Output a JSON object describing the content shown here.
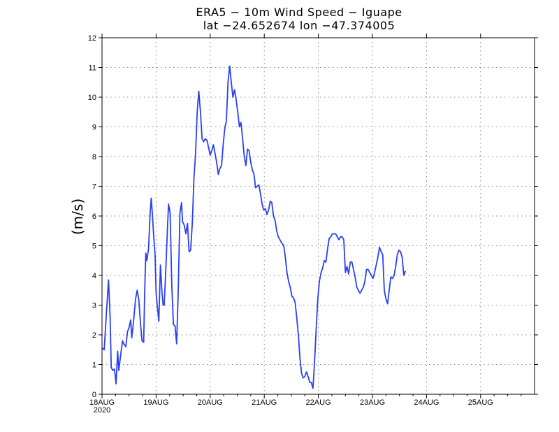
{
  "chart_data": {
    "type": "line",
    "title": "ERA5 − 10m Wind Speed − Iguape",
    "subtitle": "lat −24.652674  lon −47.374005",
    "xlabel": "",
    "ylabel": "(m/s)",
    "ylim": [
      0,
      12
    ],
    "yticks": [
      0,
      1,
      2,
      3,
      4,
      5,
      6,
      7,
      8,
      9,
      10,
      11,
      12
    ],
    "xlim_days": [
      0,
      8
    ],
    "xticks": [
      {
        "day": 0,
        "label": "18AUG",
        "sublabel": "2020"
      },
      {
        "day": 1,
        "label": "19AUG"
      },
      {
        "day": 2,
        "label": "20AUG"
      },
      {
        "day": 3,
        "label": "21AUG"
      },
      {
        "day": 4,
        "label": "22AUG"
      },
      {
        "day": 5,
        "label": "23AUG"
      },
      {
        "day": 6,
        "label": "24AUG"
      },
      {
        "day": 7,
        "label": "25AUG"
      }
    ],
    "grid": true,
    "series": [
      {
        "name": "10m Wind Speed",
        "color": "#2b3ff5",
        "points_day_value": [
          [
            0.0,
            1.55
          ],
          [
            0.04,
            1.5
          ],
          [
            0.08,
            2.7
          ],
          [
            0.12,
            3.85
          ],
          [
            0.15,
            2.6
          ],
          [
            0.17,
            0.9
          ],
          [
            0.2,
            0.8
          ],
          [
            0.23,
            0.85
          ],
          [
            0.26,
            0.35
          ],
          [
            0.29,
            1.45
          ],
          [
            0.31,
            0.8
          ],
          [
            0.35,
            1.4
          ],
          [
            0.38,
            1.8
          ],
          [
            0.4,
            1.7
          ],
          [
            0.44,
            1.6
          ],
          [
            0.47,
            2.1
          ],
          [
            0.5,
            2.25
          ],
          [
            0.53,
            2.5
          ],
          [
            0.55,
            1.9
          ],
          [
            0.58,
            2.4
          ],
          [
            0.62,
            3.2
          ],
          [
            0.65,
            3.5
          ],
          [
            0.68,
            3.2
          ],
          [
            0.71,
            2.4
          ],
          [
            0.74,
            1.8
          ],
          [
            0.77,
            1.75
          ],
          [
            0.79,
            3.5
          ],
          [
            0.81,
            4.75
          ],
          [
            0.83,
            4.5
          ],
          [
            0.86,
            4.9
          ],
          [
            0.89,
            6.1
          ],
          [
            0.91,
            6.6
          ],
          [
            0.93,
            6.1
          ],
          [
            0.95,
            5.5
          ],
          [
            0.98,
            4.7
          ],
          [
            1.0,
            3.4
          ],
          [
            1.05,
            2.45
          ],
          [
            1.08,
            4.35
          ],
          [
            1.11,
            3.4
          ],
          [
            1.13,
            3.0
          ],
          [
            1.15,
            3.0
          ],
          [
            1.18,
            4.2
          ],
          [
            1.21,
            5.6
          ],
          [
            1.23,
            6.4
          ],
          [
            1.26,
            6.1
          ],
          [
            1.29,
            3.7
          ],
          [
            1.32,
            2.35
          ],
          [
            1.35,
            2.3
          ],
          [
            1.38,
            1.7
          ],
          [
            1.41,
            3.5
          ],
          [
            1.44,
            6.1
          ],
          [
            1.47,
            6.45
          ],
          [
            1.49,
            5.8
          ],
          [
            1.52,
            5.7
          ],
          [
            1.55,
            5.4
          ],
          [
            1.58,
            5.75
          ],
          [
            1.61,
            4.8
          ],
          [
            1.64,
            4.85
          ],
          [
            1.67,
            5.8
          ],
          [
            1.7,
            7.3
          ],
          [
            1.73,
            8.1
          ],
          [
            1.76,
            9.5
          ],
          [
            1.79,
            10.2
          ],
          [
            1.82,
            9.5
          ],
          [
            1.85,
            8.6
          ],
          [
            1.88,
            8.5
          ],
          [
            1.91,
            8.6
          ],
          [
            1.94,
            8.55
          ],
          [
            1.97,
            8.3
          ],
          [
            2.0,
            8.05
          ],
          [
            2.03,
            8.2
          ],
          [
            2.06,
            8.4
          ],
          [
            2.09,
            8.1
          ],
          [
            2.12,
            7.8
          ],
          [
            2.15,
            7.4
          ],
          [
            2.18,
            7.6
          ],
          [
            2.21,
            7.7
          ],
          [
            2.24,
            8.4
          ],
          [
            2.27,
            8.95
          ],
          [
            2.3,
            9.2
          ],
          [
            2.33,
            10.5
          ],
          [
            2.36,
            11.05
          ],
          [
            2.39,
            10.5
          ],
          [
            2.42,
            10.0
          ],
          [
            2.45,
            10.25
          ],
          [
            2.48,
            9.9
          ],
          [
            2.51,
            9.5
          ],
          [
            2.54,
            9.0
          ],
          [
            2.57,
            9.15
          ],
          [
            2.6,
            8.6
          ],
          [
            2.63,
            8.0
          ],
          [
            2.66,
            7.7
          ],
          [
            2.69,
            8.25
          ],
          [
            2.72,
            8.2
          ],
          [
            2.75,
            7.8
          ],
          [
            2.78,
            7.55
          ],
          [
            2.81,
            7.4
          ],
          [
            2.84,
            6.95
          ],
          [
            2.87,
            7.0
          ],
          [
            2.9,
            7.05
          ],
          [
            2.93,
            6.75
          ],
          [
            2.96,
            6.4
          ],
          [
            2.99,
            6.2
          ],
          [
            3.02,
            6.25
          ],
          [
            3.05,
            6.05
          ],
          [
            3.08,
            6.2
          ],
          [
            3.11,
            6.5
          ],
          [
            3.14,
            6.45
          ],
          [
            3.17,
            6.0
          ],
          [
            3.2,
            5.85
          ],
          [
            3.23,
            5.5
          ],
          [
            3.26,
            5.3
          ],
          [
            3.29,
            5.2
          ],
          [
            3.32,
            5.1
          ],
          [
            3.36,
            5.0
          ],
          [
            3.39,
            4.6
          ],
          [
            3.42,
            4.1
          ],
          [
            3.45,
            3.8
          ],
          [
            3.48,
            3.6
          ],
          [
            3.51,
            3.3
          ],
          [
            3.54,
            3.25
          ],
          [
            3.57,
            3.1
          ],
          [
            3.6,
            2.6
          ],
          [
            3.63,
            2.0
          ],
          [
            3.66,
            1.2
          ],
          [
            3.69,
            0.7
          ],
          [
            3.72,
            0.55
          ],
          [
            3.75,
            0.6
          ],
          [
            3.78,
            0.75
          ],
          [
            3.81,
            0.6
          ],
          [
            3.84,
            0.4
          ],
          [
            3.87,
            0.4
          ],
          [
            3.9,
            0.2
          ],
          [
            3.93,
            1.1
          ],
          [
            3.96,
            2.2
          ],
          [
            3.99,
            3.2
          ],
          [
            4.02,
            3.8
          ],
          [
            4.05,
            4.1
          ],
          [
            4.08,
            4.25
          ],
          [
            4.11,
            4.5
          ],
          [
            4.14,
            4.45
          ],
          [
            4.17,
            4.9
          ],
          [
            4.2,
            5.25
          ],
          [
            4.23,
            5.3
          ],
          [
            4.26,
            5.4
          ],
          [
            4.29,
            5.4
          ],
          [
            4.32,
            5.4
          ],
          [
            4.35,
            5.3
          ],
          [
            4.38,
            5.2
          ],
          [
            4.41,
            5.3
          ],
          [
            4.44,
            5.3
          ],
          [
            4.47,
            5.2
          ],
          [
            4.5,
            4.1
          ],
          [
            4.53,
            4.3
          ],
          [
            4.56,
            4.05
          ],
          [
            4.59,
            4.45
          ],
          [
            4.62,
            4.45
          ],
          [
            4.65,
            4.2
          ],
          [
            4.68,
            3.95
          ],
          [
            4.71,
            3.6
          ],
          [
            4.74,
            3.5
          ],
          [
            4.77,
            3.4
          ],
          [
            4.8,
            3.5
          ],
          [
            4.83,
            3.6
          ],
          [
            4.86,
            3.8
          ],
          [
            4.89,
            4.2
          ],
          [
            4.92,
            4.2
          ],
          [
            4.95,
            4.1
          ],
          [
            4.98,
            4.0
          ],
          [
            5.01,
            3.9
          ],
          [
            5.04,
            4.1
          ],
          [
            5.07,
            4.35
          ],
          [
            5.1,
            4.6
          ],
          [
            5.13,
            4.95
          ],
          [
            5.16,
            4.8
          ],
          [
            5.19,
            4.7
          ],
          [
            5.22,
            3.5
          ],
          [
            5.25,
            3.2
          ],
          [
            5.28,
            3.05
          ],
          [
            5.31,
            3.5
          ],
          [
            5.34,
            3.95
          ],
          [
            5.37,
            3.9
          ],
          [
            5.4,
            4.0
          ],
          [
            5.43,
            4.3
          ],
          [
            5.46,
            4.7
          ],
          [
            5.49,
            4.85
          ],
          [
            5.52,
            4.8
          ],
          [
            5.55,
            4.6
          ],
          [
            5.58,
            4.0
          ],
          [
            5.61,
            4.15
          ]
        ]
      }
    ]
  }
}
